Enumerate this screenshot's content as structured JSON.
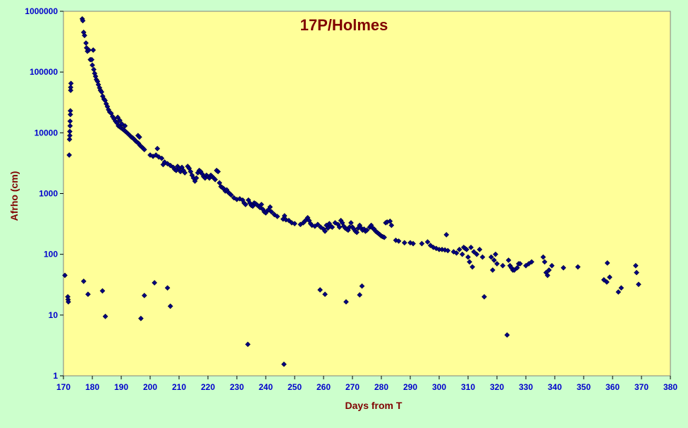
{
  "chart_data": {
    "type": "scatter",
    "title": "17P/Holmes",
    "xlabel": "Days from  T",
    "ylabel": "Afrho (cm)",
    "xlim": [
      170,
      380
    ],
    "ylim": [
      1,
      1000000
    ],
    "yscale": "log",
    "grid": false,
    "legend": "none",
    "x_ticks": [
      170,
      180,
      190,
      200,
      210,
      220,
      230,
      240,
      250,
      260,
      270,
      280,
      290,
      300,
      310,
      320,
      330,
      340,
      350,
      360,
      370,
      380
    ],
    "y_ticks": [
      1,
      10,
      100,
      1000,
      10000,
      100000,
      1000000
    ],
    "y_tick_labels": [
      "1",
      "10",
      "100",
      "1000",
      "10000",
      "100000",
      "1000000"
    ],
    "colors": {
      "plot_background": "#ffff99",
      "outer_background": "#ccffcc",
      "marker": "#000080",
      "title": "#800000",
      "axis_labels": "#800000",
      "tick_labels": "#0000cc"
    },
    "series": [
      {
        "points": [
          [
            170.5,
            45
          ],
          [
            171.5,
            20
          ],
          [
            171.6,
            18
          ],
          [
            171.7,
            16.5
          ],
          [
            172.0,
            4300
          ],
          [
            172.1,
            7800
          ],
          [
            172.2,
            9000
          ],
          [
            172.2,
            10500
          ],
          [
            172.3,
            13000
          ],
          [
            172.3,
            15500
          ],
          [
            172.4,
            20000
          ],
          [
            172.4,
            23000
          ],
          [
            172.5,
            50000
          ],
          [
            172.5,
            56000
          ],
          [
            172.6,
            65000
          ],
          [
            176.5,
            750000
          ],
          [
            176.7,
            700000
          ],
          [
            177.0,
            450000
          ],
          [
            177.3,
            400000
          ],
          [
            177.8,
            300000
          ],
          [
            178.0,
            250000
          ],
          [
            178.3,
            220000
          ],
          [
            178.8,
            230000
          ],
          [
            179.3,
            160000
          ],
          [
            179.8,
            160000
          ],
          [
            180.0,
            130000
          ],
          [
            180.3,
            230000
          ],
          [
            180.5,
            110000
          ],
          [
            180.8,
            95000
          ],
          [
            181.1,
            85000
          ],
          [
            181.4,
            75000
          ],
          [
            181.8,
            70000
          ],
          [
            182.1,
            62000
          ],
          [
            182.5,
            55000
          ],
          [
            182.8,
            50000
          ],
          [
            183.2,
            47000
          ],
          [
            183.6,
            40000
          ],
          [
            184.0,
            36000
          ],
          [
            184.4,
            34000
          ],
          [
            184.8,
            30000
          ],
          [
            185.2,
            27000
          ],
          [
            185.6,
            24000
          ],
          [
            186.0,
            22000
          ],
          [
            186.5,
            21000
          ],
          [
            187.0,
            18500
          ],
          [
            187.5,
            17000
          ],
          [
            188.0,
            15500
          ],
          [
            188.5,
            14500
          ],
          [
            189.0,
            13000
          ],
          [
            189.5,
            12500
          ],
          [
            190.0,
            12000
          ],
          [
            190.5,
            11500
          ],
          [
            191.0,
            11000
          ],
          [
            191.5,
            10500
          ],
          [
            192.0,
            10000
          ],
          [
            192.5,
            9500
          ],
          [
            193.0,
            9000
          ],
          [
            193.5,
            8500
          ],
          [
            194.0,
            8200
          ],
          [
            194.5,
            7800
          ],
          [
            195.0,
            7300
          ],
          [
            195.5,
            7000
          ],
          [
            196.0,
            6700
          ],
          [
            196.5,
            6200
          ],
          [
            197.0,
            5900
          ],
          [
            197.5,
            5600
          ],
          [
            198.0,
            5300
          ],
          [
            189.5,
            16000
          ],
          [
            190.2,
            14000
          ],
          [
            188.8,
            18000
          ],
          [
            191.3,
            13000
          ],
          [
            195.8,
            9000
          ],
          [
            196.3,
            8500
          ],
          [
            200.0,
            4300
          ],
          [
            201.0,
            4100
          ],
          [
            202.0,
            4300
          ],
          [
            202.5,
            5500
          ],
          [
            203.0,
            4000
          ],
          [
            204.0,
            3800
          ],
          [
            204.5,
            3000
          ],
          [
            205.0,
            3300
          ],
          [
            206.0,
            3100
          ],
          [
            207.0,
            2900
          ],
          [
            208.0,
            2700
          ],
          [
            208.5,
            2500
          ],
          [
            209.0,
            2400
          ],
          [
            209.5,
            2800
          ],
          [
            210.0,
            2600
          ],
          [
            210.5,
            2300
          ],
          [
            211.0,
            2700
          ],
          [
            211.5,
            2400
          ],
          [
            212.0,
            2200
          ],
          [
            213.0,
            2800
          ],
          [
            213.5,
            2600
          ],
          [
            214.0,
            2300
          ],
          [
            214.5,
            2000
          ],
          [
            215.0,
            1800
          ],
          [
            215.5,
            1600
          ],
          [
            216.0,
            1800
          ],
          [
            216.5,
            2200
          ],
          [
            217.0,
            2400
          ],
          [
            217.5,
            2300
          ],
          [
            218.0,
            2100
          ],
          [
            218.5,
            1900
          ],
          [
            219.0,
            1800
          ],
          [
            219.5,
            2000
          ],
          [
            220.0,
            1900
          ],
          [
            220.5,
            1800
          ],
          [
            221.0,
            2000
          ],
          [
            221.5,
            1900
          ],
          [
            222.0,
            1800
          ],
          [
            222.5,
            1700
          ],
          [
            223.0,
            2400
          ],
          [
            223.5,
            2300
          ],
          [
            224.0,
            1500
          ],
          [
            224.5,
            1300
          ],
          [
            225.0,
            1250
          ],
          [
            225.5,
            1200
          ],
          [
            226.0,
            1100
          ],
          [
            226.5,
            1150
          ],
          [
            227.0,
            1050
          ],
          [
            227.5,
            1000
          ],
          [
            228.0,
            950
          ],
          [
            229.0,
            850
          ],
          [
            230.0,
            800
          ],
          [
            231.0,
            820
          ],
          [
            232.0,
            780
          ],
          [
            232.5,
            700
          ],
          [
            233.0,
            660
          ],
          [
            234.0,
            780
          ],
          [
            234.5,
            700
          ],
          [
            235.0,
            640
          ],
          [
            235.5,
            620
          ],
          [
            236.0,
            700
          ],
          [
            236.5,
            680
          ],
          [
            237.0,
            650
          ],
          [
            237.5,
            620
          ],
          [
            238.0,
            590
          ],
          [
            238.5,
            660
          ],
          [
            239.0,
            550
          ],
          [
            239.5,
            500
          ],
          [
            240.0,
            480
          ],
          [
            240.5,
            520
          ],
          [
            241.0,
            540
          ],
          [
            241.5,
            600
          ],
          [
            242.0,
            500
          ],
          [
            243.0,
            450
          ],
          [
            244.0,
            420
          ],
          [
            246.0,
            380
          ],
          [
            246.5,
            430
          ],
          [
            247.0,
            370
          ],
          [
            248.0,
            360
          ],
          [
            249.0,
            330
          ],
          [
            250.0,
            320
          ],
          [
            252.0,
            310
          ],
          [
            253.0,
            330
          ],
          [
            253.5,
            350
          ],
          [
            254.0,
            370
          ],
          [
            254.5,
            400
          ],
          [
            255.0,
            360
          ],
          [
            255.5,
            320
          ],
          [
            256.0,
            300
          ],
          [
            257.0,
            290
          ],
          [
            258.0,
            310
          ],
          [
            259.0,
            280
          ],
          [
            260.0,
            260
          ],
          [
            260.5,
            240
          ],
          [
            261.0,
            300
          ],
          [
            261.5,
            270
          ],
          [
            262.0,
            320
          ],
          [
            262.5,
            290
          ],
          [
            263.0,
            280
          ],
          [
            264.0,
            330
          ],
          [
            265.0,
            310
          ],
          [
            265.5,
            280
          ],
          [
            266.0,
            360
          ],
          [
            266.5,
            330
          ],
          [
            267.0,
            290
          ],
          [
            267.5,
            270
          ],
          [
            268.0,
            260
          ],
          [
            268.5,
            250
          ],
          [
            269.0,
            280
          ],
          [
            269.5,
            330
          ],
          [
            270.0,
            280
          ],
          [
            270.5,
            260
          ],
          [
            271.0,
            240
          ],
          [
            271.5,
            230
          ],
          [
            272.0,
            270
          ],
          [
            272.5,
            300
          ],
          [
            273.0,
            270
          ],
          [
            273.5,
            250
          ],
          [
            274.0,
            260
          ],
          [
            274.5,
            240
          ],
          [
            275.0,
            250
          ],
          [
            276.0,
            280
          ],
          [
            276.5,
            300
          ],
          [
            277.0,
            270
          ],
          [
            277.5,
            260
          ],
          [
            278.0,
            240
          ],
          [
            278.5,
            230
          ],
          [
            279.0,
            220
          ],
          [
            279.5,
            210
          ],
          [
            280.0,
            200
          ],
          [
            280.5,
            195
          ],
          [
            281.0,
            190
          ],
          [
            281.5,
            330
          ],
          [
            282.0,
            340
          ],
          [
            283.0,
            350
          ],
          [
            283.5,
            300
          ],
          [
            285.0,
            170
          ],
          [
            286.0,
            165
          ],
          [
            288.0,
            155
          ],
          [
            290.0,
            155
          ],
          [
            291.0,
            150
          ],
          [
            294.0,
            150
          ],
          [
            296.0,
            160
          ],
          [
            297.0,
            140
          ],
          [
            298.0,
            130
          ],
          [
            299.0,
            125
          ],
          [
            300.0,
            120
          ],
          [
            301.0,
            120
          ],
          [
            302.0,
            118
          ],
          [
            302.5,
            210
          ],
          [
            303.0,
            115
          ],
          [
            305.0,
            110
          ],
          [
            306.0,
            105
          ],
          [
            307.0,
            120
          ],
          [
            308.0,
            100
          ],
          [
            308.5,
            130
          ],
          [
            309.0,
            125
          ],
          [
            309.5,
            120
          ],
          [
            310.0,
            90
          ],
          [
            310.5,
            75
          ],
          [
            311.0,
            130
          ],
          [
            311.5,
            62
          ],
          [
            312.0,
            110
          ],
          [
            313.0,
            100
          ],
          [
            314.0,
            120
          ],
          [
            315.0,
            90
          ],
          [
            318.0,
            90
          ],
          [
            318.5,
            55
          ],
          [
            319.0,
            80
          ],
          [
            319.5,
            100
          ],
          [
            320.0,
            70
          ],
          [
            322.0,
            65
          ],
          [
            324.0,
            80
          ],
          [
            324.5,
            65
          ],
          [
            325.0,
            60
          ],
          [
            325.5,
            55
          ],
          [
            326.0,
            55
          ],
          [
            327.0,
            60
          ],
          [
            327.5,
            70
          ],
          [
            328.0,
            70
          ],
          [
            330.0,
            65
          ],
          [
            331.0,
            70
          ],
          [
            332.0,
            75
          ],
          [
            336.0,
            90
          ],
          [
            336.5,
            75
          ],
          [
            337.0,
            50
          ],
          [
            337.5,
            45
          ],
          [
            338.0,
            55
          ],
          [
            339.0,
            65
          ],
          [
            343.0,
            60
          ],
          [
            348.0,
            62
          ],
          [
            357.0,
            38
          ],
          [
            358.0,
            35
          ],
          [
            359.0,
            42
          ],
          [
            358.2,
            72
          ],
          [
            368.0,
            65
          ],
          [
            368.3,
            50
          ],
          [
            369.0,
            32
          ],
          [
            177.0,
            36
          ],
          [
            178.5,
            22
          ],
          [
            183.5,
            25
          ],
          [
            184.5,
            9.5
          ],
          [
            196.8,
            8.8
          ],
          [
            198.0,
            21
          ],
          [
            201.5,
            34
          ],
          [
            206.0,
            28
          ],
          [
            207.0,
            14
          ],
          [
            233.8,
            3.3
          ],
          [
            246.3,
            1.55
          ],
          [
            258.8,
            26
          ],
          [
            260.5,
            22
          ],
          [
            267.8,
            16.5
          ],
          [
            272.5,
            21.5
          ],
          [
            273.3,
            30
          ],
          [
            315.6,
            20
          ],
          [
            323.5,
            4.7
          ],
          [
            362.0,
            24
          ],
          [
            363.0,
            28
          ]
        ]
      }
    ]
  }
}
